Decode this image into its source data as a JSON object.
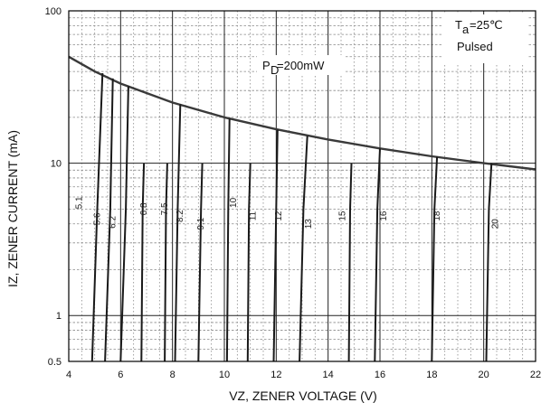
{
  "chart_data": {
    "type": "line",
    "xlabel": "VZ, ZENER VOLTAGE (V)",
    "ylabel": "IZ, ZENER CURRENT (mA)",
    "xlim": [
      4,
      22
    ],
    "ylim": [
      0.5,
      100
    ],
    "yscale": "log",
    "x_ticks": [
      "4",
      "6",
      "8",
      "10",
      "12",
      "14",
      "16",
      "18",
      "20",
      "22"
    ],
    "y_ticks": [
      "0.5",
      "1",
      "10",
      "100"
    ],
    "grid": true,
    "annotations": {
      "ta_symbol": "T",
      "ta_sub": "a",
      "ta_value": "=25℃",
      "pulsed": "Pulsed",
      "pd_symbol": "P",
      "pd_sub": "D",
      "pd_value": "=200mW"
    },
    "power_limit_curve": {
      "name": "PD=200mW",
      "x": [
        4,
        5,
        6,
        8,
        10,
        12,
        14,
        16,
        18,
        20,
        22
      ],
      "y": [
        50,
        40,
        33.3,
        25,
        20,
        16.7,
        14.3,
        12.5,
        11.1,
        10,
        9.1
      ]
    },
    "zener_curves": [
      {
        "label": "5.1",
        "x": [
          4.9,
          5.1,
          5.3
        ],
        "y": [
          0.5,
          5,
          39
        ],
        "label_x": 4.5,
        "label_y": 5.5,
        "label_size": 7
      },
      {
        "label": "5.6",
        "x": [
          5.4,
          5.6,
          5.7
        ],
        "y": [
          0.5,
          5,
          36
        ],
        "label_x": 5.2,
        "label_y": 4.3,
        "label_size": 10
      },
      {
        "label": "6.2",
        "x": [
          6.0,
          6.2,
          6.3
        ],
        "y": [
          0.5,
          5,
          32
        ],
        "label_x": 5.8,
        "label_y": 4.1,
        "label_size": 10
      },
      {
        "label": "6.8",
        "x": [
          6.8,
          6.85,
          6.9
        ],
        "y": [
          0.5,
          5,
          10
        ],
        "label_x": 7.0,
        "label_y": 5.0,
        "label_size": 10
      },
      {
        "label": "7.5",
        "x": [
          7.7,
          7.75,
          7.8
        ],
        "y": [
          0.5,
          5,
          10
        ],
        "label_x": 7.8,
        "label_y": 5.0,
        "label_size": 10
      },
      {
        "label": "8.2",
        "x": [
          8.1,
          8.2,
          8.3
        ],
        "y": [
          0.5,
          5,
          24.4
        ],
        "label_x": 8.4,
        "label_y": 4.5,
        "label_size": 10
      },
      {
        "label": "9.1",
        "x": [
          9.0,
          9.1,
          9.15
        ],
        "y": [
          0.5,
          5,
          10
        ],
        "label_x": 9.2,
        "label_y": 4.0,
        "label_size": 10
      },
      {
        "label": "10",
        "x": [
          10.1,
          10.15,
          10.2
        ],
        "y": [
          0.5,
          5,
          19.6
        ],
        "label_x": 10.45,
        "label_y": 5.5,
        "label_size": 10
      },
      {
        "label": "11",
        "x": [
          10.9,
          10.95,
          11.0
        ],
        "y": [
          0.5,
          5,
          10
        ],
        "label_x": 11.2,
        "label_y": 4.5,
        "label_size": 10
      },
      {
        "label": "12",
        "x": [
          11.9,
          12.0,
          12.05
        ],
        "y": [
          0.5,
          5,
          16.6
        ],
        "label_x": 12.2,
        "label_y": 4.5,
        "label_size": 10
      },
      {
        "label": "13",
        "x": [
          12.9,
          13.05,
          13.2
        ],
        "y": [
          0.5,
          5,
          15.1
        ],
        "label_x": 13.35,
        "label_y": 4.0,
        "label_size": 10
      },
      {
        "label": "15",
        "x": [
          14.8,
          14.85,
          14.9
        ],
        "y": [
          0.5,
          5,
          10
        ],
        "label_x": 14.65,
        "label_y": 4.5,
        "label_size": 10
      },
      {
        "label": "16",
        "x": [
          15.8,
          15.9,
          16.0
        ],
        "y": [
          0.5,
          5,
          12.5
        ],
        "label_x": 16.25,
        "label_y": 4.5,
        "label_size": 10
      },
      {
        "label": "18",
        "x": [
          18.0,
          18.1,
          18.2
        ],
        "y": [
          0.5,
          5,
          11.0
        ],
        "label_x": 18.3,
        "label_y": 4.5,
        "label_size": 10
      },
      {
        "label": "20",
        "x": [
          20.1,
          20.2,
          20.3
        ],
        "y": [
          0.5,
          5,
          10.0
        ],
        "label_x": 20.55,
        "label_y": 4.0,
        "label_size": 10
      }
    ]
  }
}
